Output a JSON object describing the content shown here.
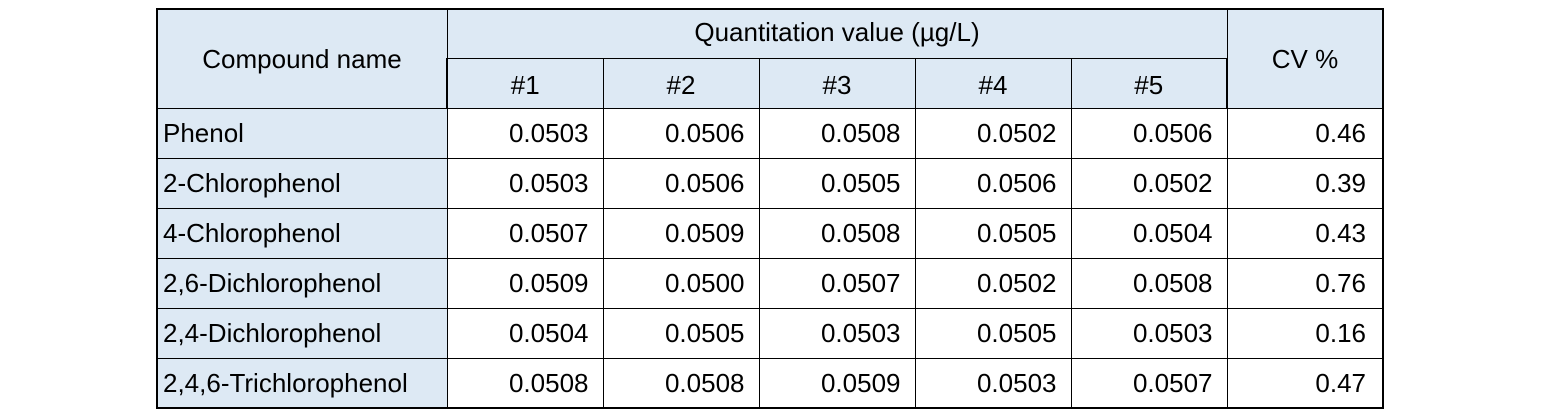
{
  "table": {
    "header": {
      "compound_label": "Compound name",
      "group_label": "Quantitation value (µg/L)",
      "cv_label": "CV %",
      "runs": [
        "#1",
        "#2",
        "#3",
        "#4",
        "#5"
      ]
    },
    "rows": [
      {
        "name": "Phenol",
        "values": [
          "0.0503",
          "0.0506",
          "0.0508",
          "0.0502",
          "0.0506"
        ],
        "cv": "0.46"
      },
      {
        "name": "2-Chlorophenol",
        "values": [
          "0.0503",
          "0.0506",
          "0.0505",
          "0.0506",
          "0.0502"
        ],
        "cv": "0.39"
      },
      {
        "name": "4-Chlorophenol",
        "values": [
          "0.0507",
          "0.0509",
          "0.0508",
          "0.0505",
          "0.0504"
        ],
        "cv": "0.43"
      },
      {
        "name": "2,6-Dichlorophenol",
        "values": [
          "0.0509",
          "0.0500",
          "0.0507",
          "0.0502",
          "0.0508"
        ],
        "cv": "0.76"
      },
      {
        "name": "2,4-Dichlorophenol",
        "values": [
          "0.0504",
          "0.0505",
          "0.0503",
          "0.0505",
          "0.0503"
        ],
        "cv": "0.16"
      },
      {
        "name": "2,4,6-Trichlorophenol",
        "values": [
          "0.0508",
          "0.0508",
          "0.0509",
          "0.0503",
          "0.0507"
        ],
        "cv": "0.47"
      }
    ]
  }
}
